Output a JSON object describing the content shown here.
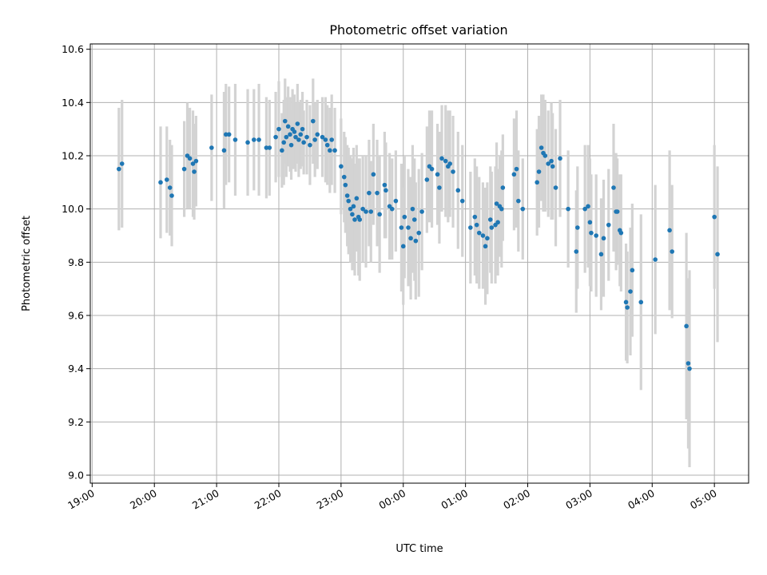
{
  "chart_data": {
    "type": "scatter",
    "title": "Photometric offset variation",
    "xlabel": "UTC time",
    "ylabel": "Photometric offset",
    "xlim_hours": [
      18.97,
      29.55
    ],
    "ylim": [
      8.97,
      10.62
    ],
    "x_ticks": [
      {
        "h": 19,
        "label": "19:00"
      },
      {
        "h": 20,
        "label": "20:00"
      },
      {
        "h": 21,
        "label": "21:00"
      },
      {
        "h": 22,
        "label": "22:00"
      },
      {
        "h": 23,
        "label": "23:00"
      },
      {
        "h": 24,
        "label": "00:00"
      },
      {
        "h": 25,
        "label": "01:00"
      },
      {
        "h": 26,
        "label": "02:00"
      },
      {
        "h": 27,
        "label": "03:00"
      },
      {
        "h": 28,
        "label": "04:00"
      },
      {
        "h": 29,
        "label": "05:00"
      }
    ],
    "y_ticks": [
      {
        "v": 9.0,
        "label": "9.0"
      },
      {
        "v": 9.2,
        "label": "9.2"
      },
      {
        "v": 9.4,
        "label": "9.4"
      },
      {
        "v": 9.6,
        "label": "9.6"
      },
      {
        "v": 9.8,
        "label": "9.8"
      },
      {
        "v": 10.0,
        "label": "10.0"
      },
      {
        "v": 10.2,
        "label": "10.2"
      },
      {
        "v": 10.4,
        "label": "10.4"
      },
      {
        "v": 10.6,
        "label": "10.6"
      }
    ],
    "grid": true,
    "points": [
      [
        19.43,
        10.15,
        0.23
      ],
      [
        19.48,
        10.17,
        0.24
      ],
      [
        20.1,
        10.1,
        0.21
      ],
      [
        20.2,
        10.11,
        0.2
      ],
      [
        20.25,
        10.08,
        0.18
      ],
      [
        20.28,
        10.05,
        0.19
      ],
      [
        20.48,
        10.15,
        0.18
      ],
      [
        20.53,
        10.2,
        0.2
      ],
      [
        20.57,
        10.19,
        0.19
      ],
      [
        20.62,
        10.17,
        0.2
      ],
      [
        20.64,
        10.14,
        0.18
      ],
      [
        20.67,
        10.18,
        0.17
      ],
      [
        20.92,
        10.23,
        0.2
      ],
      [
        21.12,
        10.22,
        0.22
      ],
      [
        21.15,
        10.28,
        0.19
      ],
      [
        21.2,
        10.28,
        0.18
      ],
      [
        21.3,
        10.26,
        0.21
      ],
      [
        21.5,
        10.25,
        0.2
      ],
      [
        21.6,
        10.26,
        0.19
      ],
      [
        21.68,
        10.26,
        0.21
      ],
      [
        21.8,
        10.23,
        0.19
      ],
      [
        21.85,
        10.23,
        0.18
      ],
      [
        21.95,
        10.27,
        0.17
      ],
      [
        22.0,
        10.3,
        0.18
      ],
      [
        22.05,
        10.22,
        0.14
      ],
      [
        22.08,
        10.25,
        0.16
      ],
      [
        22.1,
        10.33,
        0.16
      ],
      [
        22.12,
        10.27,
        0.15
      ],
      [
        22.15,
        10.31,
        0.15
      ],
      [
        22.18,
        10.28,
        0.14
      ],
      [
        22.2,
        10.24,
        0.13
      ],
      [
        22.22,
        10.3,
        0.15
      ],
      [
        22.25,
        10.29,
        0.14
      ],
      [
        22.27,
        10.27,
        0.13
      ],
      [
        22.3,
        10.32,
        0.15
      ],
      [
        22.32,
        10.26,
        0.14
      ],
      [
        22.35,
        10.28,
        0.13
      ],
      [
        22.38,
        10.3,
        0.14
      ],
      [
        22.4,
        10.25,
        0.12
      ],
      [
        22.45,
        10.27,
        0.14
      ],
      [
        22.5,
        10.24,
        0.15
      ],
      [
        22.55,
        10.33,
        0.16
      ],
      [
        22.58,
        10.26,
        0.14
      ],
      [
        22.62,
        10.28,
        0.13
      ],
      [
        22.7,
        10.27,
        0.15
      ],
      [
        22.75,
        10.26,
        0.16
      ],
      [
        22.78,
        10.24,
        0.15
      ],
      [
        22.82,
        10.22,
        0.16
      ],
      [
        22.85,
        10.26,
        0.17
      ],
      [
        22.9,
        10.22,
        0.16
      ],
      [
        23.0,
        10.16,
        0.18
      ],
      [
        23.05,
        10.12,
        0.17
      ],
      [
        23.07,
        10.09,
        0.18
      ],
      [
        23.1,
        10.05,
        0.19
      ],
      [
        23.12,
        10.03,
        0.2
      ],
      [
        23.15,
        10.0,
        0.2
      ],
      [
        23.18,
        9.98,
        0.21
      ],
      [
        23.2,
        10.01,
        0.22
      ],
      [
        23.22,
        9.96,
        0.21
      ],
      [
        23.25,
        10.04,
        0.2
      ],
      [
        23.28,
        9.97,
        0.22
      ],
      [
        23.3,
        9.96,
        0.23
      ],
      [
        23.35,
        10.0,
        0.2
      ],
      [
        23.4,
        9.99,
        0.21
      ],
      [
        23.45,
        10.06,
        0.2
      ],
      [
        23.48,
        9.99,
        0.19
      ],
      [
        23.52,
        10.13,
        0.19
      ],
      [
        23.58,
        10.06,
        0.2
      ],
      [
        23.62,
        9.98,
        0.22
      ],
      [
        23.7,
        10.09,
        0.2
      ],
      [
        23.72,
        10.07,
        0.18
      ],
      [
        23.78,
        10.01,
        0.2
      ],
      [
        23.82,
        10.0,
        0.19
      ],
      [
        23.88,
        10.03,
        0.19
      ],
      [
        23.97,
        9.93,
        0.24
      ],
      [
        24.0,
        9.86,
        0.22
      ],
      [
        24.02,
        9.97,
        0.23
      ],
      [
        24.08,
        9.93,
        0.22
      ],
      [
        24.12,
        9.89,
        0.23
      ],
      [
        24.15,
        10.0,
        0.24
      ],
      [
        24.18,
        9.96,
        0.23
      ],
      [
        24.2,
        9.88,
        0.22
      ],
      [
        24.25,
        9.91,
        0.24
      ],
      [
        24.3,
        9.99,
        0.22
      ],
      [
        24.38,
        10.11,
        0.2
      ],
      [
        24.42,
        10.16,
        0.21
      ],
      [
        24.46,
        10.15,
        0.22
      ],
      [
        24.55,
        10.13,
        0.19
      ],
      [
        24.58,
        10.08,
        0.21
      ],
      [
        24.62,
        10.19,
        0.2
      ],
      [
        24.68,
        10.18,
        0.21
      ],
      [
        24.72,
        10.16,
        0.21
      ],
      [
        24.75,
        10.17,
        0.2
      ],
      [
        24.8,
        10.14,
        0.21
      ],
      [
        24.88,
        10.07,
        0.22
      ],
      [
        24.95,
        10.03,
        0.21
      ],
      [
        25.08,
        9.93,
        0.21
      ],
      [
        25.15,
        9.97,
        0.22
      ],
      [
        25.18,
        9.94,
        0.22
      ],
      [
        25.22,
        9.91,
        0.21
      ],
      [
        25.28,
        9.9,
        0.2
      ],
      [
        25.32,
        9.86,
        0.22
      ],
      [
        25.35,
        9.89,
        0.21
      ],
      [
        25.4,
        9.96,
        0.2
      ],
      [
        25.42,
        9.93,
        0.21
      ],
      [
        25.48,
        9.94,
        0.22
      ],
      [
        25.5,
        10.02,
        0.23
      ],
      [
        25.52,
        9.95,
        0.2
      ],
      [
        25.55,
        10.01,
        0.19
      ],
      [
        25.6,
        10.08,
        0.2
      ],
      [
        25.58,
        10.0,
        0.22
      ],
      [
        25.78,
        10.13,
        0.21
      ],
      [
        25.82,
        10.15,
        0.22
      ],
      [
        25.85,
        10.03,
        0.19
      ],
      [
        25.92,
        10.0,
        0.19
      ],
      [
        26.15,
        10.1,
        0.2
      ],
      [
        26.18,
        10.14,
        0.21
      ],
      [
        26.22,
        10.23,
        0.2
      ],
      [
        26.25,
        10.21,
        0.22
      ],
      [
        26.28,
        10.2,
        0.21
      ],
      [
        26.33,
        10.17,
        0.2
      ],
      [
        26.38,
        10.18,
        0.22
      ],
      [
        26.4,
        10.16,
        0.2
      ],
      [
        26.45,
        10.08,
        0.22
      ],
      [
        26.52,
        10.19,
        0.22
      ],
      [
        26.65,
        10.0,
        0.22
      ],
      [
        26.78,
        9.84,
        0.23
      ],
      [
        26.8,
        9.93,
        0.23
      ],
      [
        26.92,
        10.0,
        0.24
      ],
      [
        26.97,
        10.01,
        0.23
      ],
      [
        27.0,
        9.95,
        0.24
      ],
      [
        27.02,
        9.91,
        0.22
      ],
      [
        27.1,
        9.9,
        0.23
      ],
      [
        27.18,
        9.83,
        0.21
      ],
      [
        27.22,
        9.89,
        0.22
      ],
      [
        27.3,
        9.94,
        0.21
      ],
      [
        27.38,
        10.08,
        0.24
      ],
      [
        27.42,
        9.99,
        0.22
      ],
      [
        27.44,
        9.99,
        0.2
      ],
      [
        27.48,
        9.92,
        0.21
      ],
      [
        27.5,
        9.91,
        0.22
      ],
      [
        27.58,
        9.65,
        0.22
      ],
      [
        27.6,
        9.63,
        0.21
      ],
      [
        27.65,
        9.69,
        0.24
      ],
      [
        27.68,
        9.77,
        0.25
      ],
      [
        27.82,
        9.65,
        0.33
      ],
      [
        28.05,
        9.81,
        0.28
      ],
      [
        28.28,
        9.92,
        0.3
      ],
      [
        28.32,
        9.84,
        0.25
      ],
      [
        28.55,
        9.56,
        0.35
      ],
      [
        28.58,
        9.42,
        0.32
      ],
      [
        28.6,
        9.4,
        0.37
      ],
      [
        29.0,
        9.97,
        0.27
      ],
      [
        29.05,
        9.83,
        0.33
      ]
    ]
  }
}
